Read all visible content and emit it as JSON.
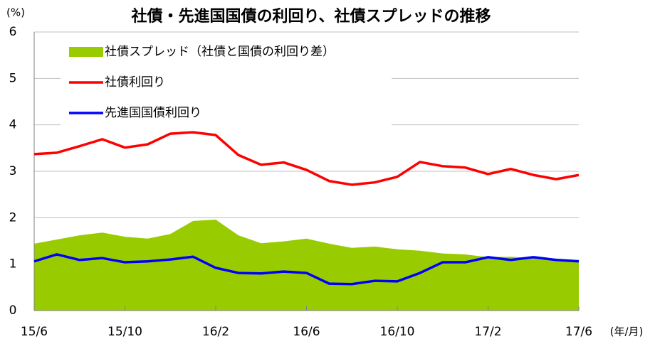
{
  "chart_data": {
    "type": "area-line",
    "title": "社債・先進国国債の利回り、社債スプレッドの推移",
    "y_label": "(%)",
    "x_label": "(年/月)",
    "categories": [
      "15/6",
      null,
      null,
      null,
      "15/10",
      null,
      null,
      null,
      "16/2",
      null,
      null,
      null,
      "16/6",
      null,
      null,
      null,
      "16/10",
      null,
      null,
      null,
      "17/2",
      null,
      null,
      null,
      "17/6"
    ],
    "ylim": [
      0,
      6
    ],
    "yticks": [
      0,
      1,
      2,
      3,
      4,
      5,
      6
    ],
    "grid": true,
    "legend": "upper left",
    "series": [
      {
        "name": "社債スプレッド（社債と国債の利回り差）",
        "color": "#99cc00",
        "kind": "area",
        "values": [
          1.44,
          1.53,
          1.62,
          1.68,
          1.59,
          1.55,
          1.65,
          1.93,
          1.96,
          1.62,
          1.45,
          1.49,
          1.55,
          1.44,
          1.35,
          1.38,
          1.32,
          1.29,
          1.23,
          1.21,
          1.15,
          1.16,
          1.13,
          1.12,
          1.09
        ]
      },
      {
        "name": "社債利回り",
        "color": "#ff0000",
        "kind": "line",
        "values": [
          3.37,
          3.4,
          3.54,
          3.69,
          3.51,
          3.58,
          3.81,
          3.84,
          3.78,
          3.35,
          3.14,
          3.19,
          3.03,
          2.79,
          2.71,
          2.76,
          2.88,
          3.2,
          3.11,
          3.08,
          2.94,
          3.05,
          2.92,
          2.83,
          2.92
        ]
      },
      {
        "name": "先進国国債利回り",
        "color": "#0000ff",
        "kind": "line",
        "values": [
          1.06,
          1.21,
          1.09,
          1.13,
          1.04,
          1.06,
          1.1,
          1.16,
          0.92,
          0.81,
          0.8,
          0.84,
          0.81,
          0.58,
          0.57,
          0.64,
          0.63,
          0.81,
          1.04,
          1.04,
          1.15,
          1.09,
          1.15,
          1.09,
          1.06
        ]
      }
    ]
  }
}
